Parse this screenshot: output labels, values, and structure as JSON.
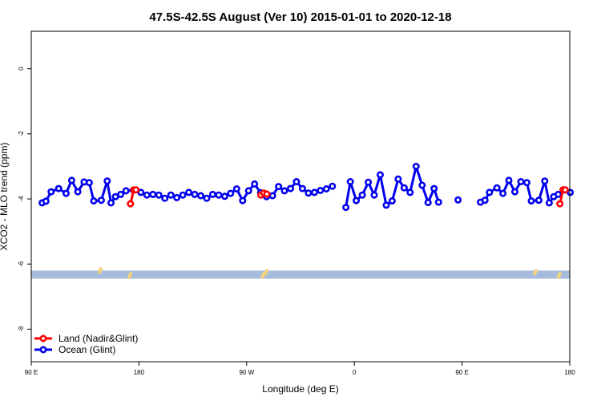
{
  "chart_data": {
    "type": "line",
    "title": "47.5S-42.5S August (Ver 10)   2015-01-01 to 2020-12-18",
    "xlabel": "Longitude (deg E)",
    "ylabel": "XCO2 - MLO trend (ppm)",
    "xlim": [
      90,
      450
    ],
    "ylim": [
      -9.0,
      1.15
    ],
    "x_ticks": [
      {
        "value": 90,
        "label": "90 E"
      },
      {
        "value": 162,
        "label": "180"
      },
      {
        "value": 234,
        "label": "90 W"
      },
      {
        "value": 306,
        "label": "0"
      },
      {
        "value": 378,
        "label": "90 E"
      },
      {
        "value": 450,
        "label": "180"
      }
    ],
    "y_ticks": [
      {
        "value": 0,
        "label": "0"
      },
      {
        "value": -2,
        "label": "-2"
      },
      {
        "value": -4,
        "label": "-4"
      },
      {
        "value": -6,
        "label": "-6"
      },
      {
        "value": -8,
        "label": "-8"
      }
    ],
    "grid": false,
    "legend_position": "bottom-left",
    "band": {
      "ymin": -6.45,
      "ymax": -6.2,
      "color": "#a7bcdc"
    },
    "land_markers": {
      "color": "#f4d37a",
      "items": [
        {
          "x": 136,
          "y": -6.2
        },
        {
          "x": 156,
          "y": -6.35
        },
        {
          "x": 245,
          "y": -6.35
        },
        {
          "x": 247,
          "y": -6.25
        },
        {
          "x": 427,
          "y": -6.25
        },
        {
          "x": 443,
          "y": -6.35
        }
      ]
    },
    "series": [
      {
        "name": "Land (Nadir&Glint)",
        "color": "#ff0000",
        "segments": [
          [
            [
              156.3,
              -4.15
            ],
            [
              158.5,
              -3.72
            ],
            [
              160,
              -3.72
            ]
          ],
          [
            [
              243.5,
              -3.88
            ],
            [
              245.5,
              -3.82
            ],
            [
              247.5,
              -3.85
            ]
          ],
          [
            [
              443.4,
              -4.15
            ],
            [
              445.5,
              -3.72
            ],
            [
              447,
              -3.72
            ]
          ]
        ]
      },
      {
        "name": "Ocean (Glint)",
        "color": "#0000ee",
        "segments": [
          [
            [
              97.3,
              -4.12
            ],
            [
              99.8,
              -4.07
            ],
            [
              103.3,
              -3.78
            ],
            [
              108.3,
              -3.68
            ],
            [
              113.3,
              -3.83
            ],
            [
              117,
              -3.43
            ],
            [
              121.1,
              -3.78
            ],
            [
              125.3,
              -3.48
            ],
            [
              128.8,
              -3.5
            ],
            [
              131.8,
              -4.06
            ],
            [
              136.8,
              -4.04
            ],
            [
              140.8,
              -3.45
            ],
            [
              143.3,
              -4.12
            ],
            [
              146.3,
              -3.93
            ],
            [
              149.8,
              -3.86
            ],
            [
              153.3,
              -3.75
            ],
            [
              158.3,
              -3.73
            ],
            [
              163.3,
              -3.8
            ],
            [
              167.3,
              -3.88
            ],
            [
              171.3,
              -3.86
            ],
            [
              175.3,
              -3.88
            ],
            [
              179.3,
              -3.98
            ],
            [
              183.3,
              -3.88
            ],
            [
              187.3,
              -3.96
            ],
            [
              191.3,
              -3.88
            ],
            [
              195.3,
              -3.8
            ],
            [
              199.3,
              -3.86
            ],
            [
              203.3,
              -3.9
            ],
            [
              207.3,
              -3.98
            ],
            [
              211.3,
              -3.86
            ],
            [
              215.3,
              -3.88
            ],
            [
              219.3,
              -3.92
            ],
            [
              223.3,
              -3.83
            ],
            [
              227.3,
              -3.69
            ],
            [
              231.3,
              -4.05
            ],
            [
              235.3,
              -3.75
            ],
            [
              239.3,
              -3.54
            ],
            [
              243.3,
              -3.81
            ],
            [
              247.3,
              -3.93
            ],
            [
              251.3,
              -3.9
            ],
            [
              255.3,
              -3.62
            ],
            [
              259.3,
              -3.75
            ],
            [
              263.3,
              -3.68
            ],
            [
              267.3,
              -3.47
            ],
            [
              271.3,
              -3.68
            ],
            [
              275.3,
              -3.82
            ],
            [
              279.3,
              -3.8
            ],
            [
              283.3,
              -3.74
            ],
            [
              287.3,
              -3.69
            ],
            [
              291.3,
              -3.61
            ]
          ],
          [
            [
              300.3,
              -4.26
            ],
            [
              303.3,
              -3.47
            ],
            [
              307.3,
              -4.05
            ],
            [
              311.3,
              -3.88
            ],
            [
              315.3,
              -3.49
            ],
            [
              319.3,
              -3.88
            ],
            [
              323.3,
              -3.26
            ],
            [
              327.3,
              -4.19
            ],
            [
              331.3,
              -4.06
            ],
            [
              335.3,
              -3.39
            ],
            [
              339.3,
              -3.66
            ],
            [
              343.3,
              -3.8
            ],
            [
              347.3,
              -3.0
            ],
            [
              351.3,
              -3.58
            ],
            [
              355.3,
              -4.11
            ],
            [
              359.3,
              -3.68
            ],
            [
              362.3,
              -4.1
            ]
          ],
          [
            [
              375.3,
              -4.03
            ]
          ],
          [
            [
              390.3,
              -4.1
            ],
            [
              393.3,
              -4.04
            ],
            [
              396.3,
              -3.8
            ],
            [
              401.3,
              -3.66
            ],
            [
              405.3,
              -3.83
            ],
            [
              409.3,
              -3.43
            ],
            [
              413.3,
              -3.78
            ],
            [
              417.3,
              -3.47
            ],
            [
              421.3,
              -3.5
            ],
            [
              424.3,
              -4.06
            ],
            [
              429.3,
              -4.04
            ],
            [
              433.3,
              -3.45
            ],
            [
              436.3,
              -4.12
            ],
            [
              439.3,
              -3.93
            ],
            [
              442.3,
              -3.86
            ],
            [
              446.3,
              -3.72
            ],
            [
              450.3,
              -3.8
            ]
          ]
        ]
      }
    ]
  }
}
